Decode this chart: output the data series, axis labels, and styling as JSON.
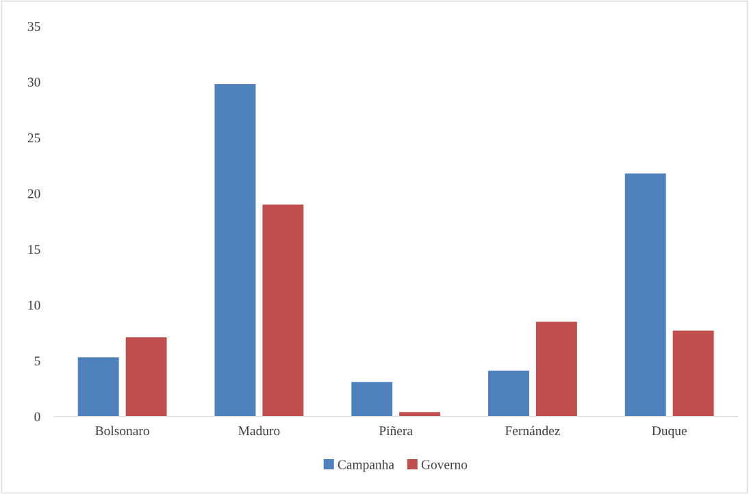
{
  "chart_data": {
    "type": "bar",
    "categories": [
      "Bolsonaro",
      "Maduro",
      "Piñera",
      "Fernández",
      "Duque"
    ],
    "series": [
      {
        "name": "Campanha",
        "color": "#4f81bd",
        "values": [
          5.3,
          29.8,
          3.1,
          4.1,
          21.8
        ]
      },
      {
        "name": "Governo",
        "color": "#c0504d",
        "values": [
          7.1,
          19.0,
          0.4,
          8.5,
          7.7
        ]
      }
    ],
    "ylim": [
      0,
      35
    ],
    "yticks": [
      0,
      5,
      10,
      15,
      20,
      25,
      30,
      35
    ],
    "grid": false,
    "legend": "bottom"
  }
}
